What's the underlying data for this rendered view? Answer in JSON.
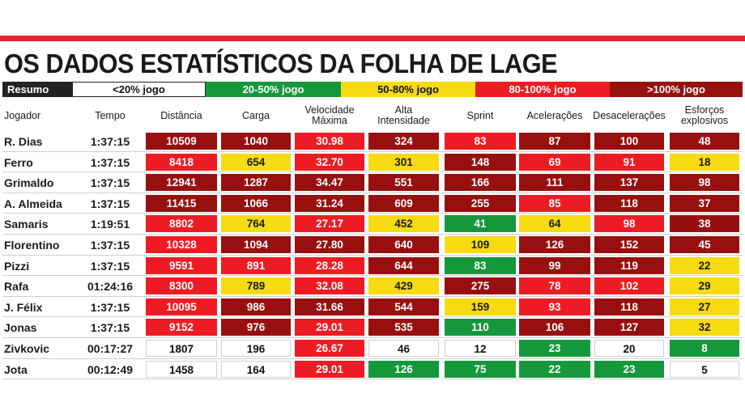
{
  "title": "OS DADOS ESTATÍSTICOS DA FOLHA DE LAGE",
  "legend": [
    {
      "label": "Resumo",
      "color": "#222222"
    },
    {
      "label": "<20% jogo",
      "color": "#ffffff"
    },
    {
      "label": "20-50% jogo",
      "color": "#15973c"
    },
    {
      "label": "50-80% jogo",
      "color": "#f6db12"
    },
    {
      "label": "80-100% jogo",
      "color": "#ed1c24"
    },
    {
      "label": ">100% jogo",
      "color": "#97100f"
    }
  ],
  "headers": {
    "player": "Jogador",
    "time": "Tempo",
    "stats": [
      [
        "Distância"
      ],
      [
        "Carga"
      ],
      [
        "Velocidade",
        "Máxima"
      ],
      [
        "Alta",
        "Intensidade"
      ],
      [
        "Sprint"
      ],
      [
        "Acelerações"
      ],
      [
        "Desacelerações"
      ],
      [
        "Esforços",
        "explosivos"
      ]
    ]
  },
  "rows": [
    {
      "player": "R. Dias",
      "time": "1:37:15",
      "values": [
        "10509",
        "1040",
        "30.98",
        "324",
        "83",
        "87",
        "100",
        "48"
      ],
      "levels": [
        "dark",
        "dark",
        "red",
        "dark",
        "red",
        "dark",
        "dark",
        "dark"
      ]
    },
    {
      "player": "Ferro",
      "time": "1:37:15",
      "values": [
        "8418",
        "654",
        "32.70",
        "301",
        "148",
        "69",
        "91",
        "18"
      ],
      "levels": [
        "red",
        "yellow",
        "red",
        "yellow",
        "dark",
        "red",
        "red",
        "yellow"
      ]
    },
    {
      "player": "Grimaldo",
      "time": "1:37:15",
      "values": [
        "12941",
        "1287",
        "34.47",
        "551",
        "166",
        "111",
        "137",
        "98"
      ],
      "levels": [
        "dark",
        "dark",
        "dark",
        "dark",
        "dark",
        "dark",
        "dark",
        "dark"
      ]
    },
    {
      "player": "A. Almeida",
      "time": "1:37:15",
      "values": [
        "11415",
        "1066",
        "31.24",
        "609",
        "255",
        "85",
        "118",
        "37"
      ],
      "levels": [
        "dark",
        "dark",
        "dark",
        "dark",
        "dark",
        "red",
        "dark",
        "dark"
      ]
    },
    {
      "player": "Samaris",
      "time": "1:19:51",
      "values": [
        "8802",
        "764",
        "27.17",
        "452",
        "41",
        "64",
        "98",
        "38"
      ],
      "levels": [
        "red",
        "yellow",
        "red",
        "yellow",
        "green",
        "yellow",
        "red",
        "dark"
      ]
    },
    {
      "player": "Florentino",
      "time": "1:37:15",
      "values": [
        "10328",
        "1094",
        "27.80",
        "640",
        "109",
        "126",
        "152",
        "45"
      ],
      "levels": [
        "red",
        "dark",
        "dark",
        "dark",
        "yellow",
        "dark",
        "dark",
        "dark"
      ]
    },
    {
      "player": "Pizzi",
      "time": "1:37:15",
      "values": [
        "9591",
        "891",
        "28.28",
        "644",
        "83",
        "99",
        "119",
        "22"
      ],
      "levels": [
        "red",
        "red",
        "red",
        "dark",
        "green",
        "dark",
        "dark",
        "yellow"
      ]
    },
    {
      "player": "Rafa",
      "time": "01:24:16",
      "values": [
        "8300",
        "789",
        "32.08",
        "429",
        "275",
        "78",
        "102",
        "29"
      ],
      "levels": [
        "red",
        "yellow",
        "red",
        "yellow",
        "dark",
        "red",
        "red",
        "yellow"
      ]
    },
    {
      "player": "J. Félix",
      "time": "1:37:15",
      "values": [
        "10095",
        "986",
        "31.66",
        "544",
        "159",
        "93",
        "118",
        "27"
      ],
      "levels": [
        "red",
        "dark",
        "dark",
        "dark",
        "yellow",
        "red",
        "dark",
        "yellow"
      ]
    },
    {
      "player": "Jonas",
      "time": "1:37:15",
      "values": [
        "9152",
        "976",
        "29.01",
        "535",
        "110",
        "106",
        "127",
        "32"
      ],
      "levels": [
        "red",
        "dark",
        "red",
        "dark",
        "green",
        "dark",
        "dark",
        "yellow"
      ]
    },
    {
      "player": "Zivkovic",
      "time": "00:17:27",
      "values": [
        "1807",
        "196",
        "26.67",
        "46",
        "12",
        "23",
        "20",
        "8"
      ],
      "levels": [
        "white",
        "white",
        "red",
        "white",
        "white",
        "green",
        "white",
        "green"
      ]
    },
    {
      "player": "Jota",
      "time": "00:12:49",
      "values": [
        "1458",
        "164",
        "29.01",
        "126",
        "75",
        "22",
        "23",
        "5"
      ],
      "levels": [
        "white",
        "white",
        "red",
        "green",
        "green",
        "green",
        "green",
        "white"
      ]
    }
  ]
}
